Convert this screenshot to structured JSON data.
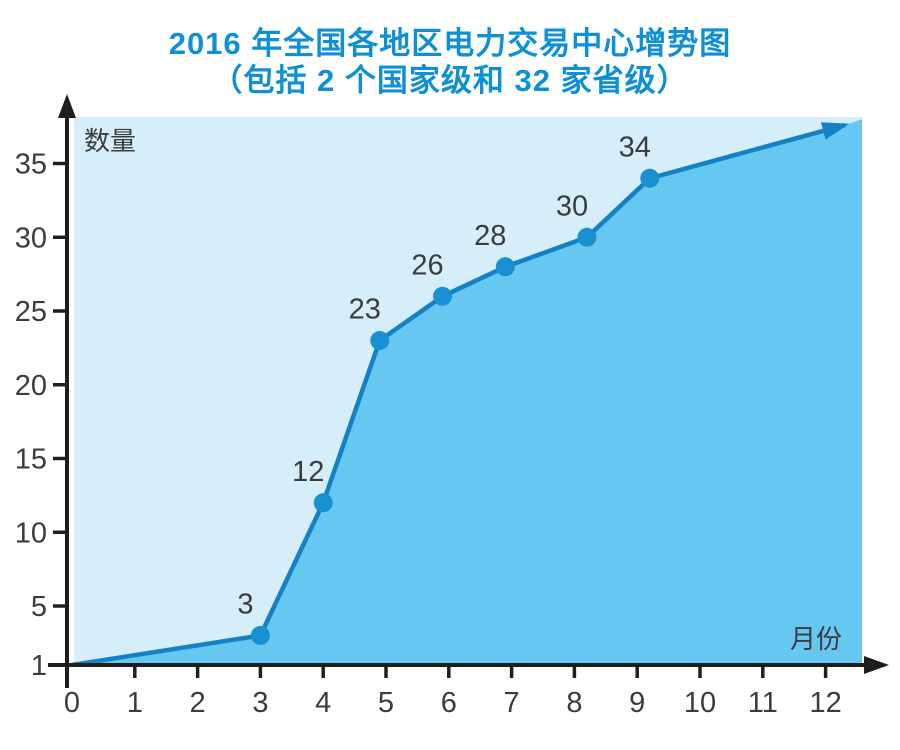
{
  "header": {
    "title": "2016 年全国各地区电力交易中心增势图",
    "subtitle": "（包括 2 个国家级和 32 家省级）"
  },
  "chart_data": {
    "type": "area",
    "title": "2016 年全国各地区电力交易中心增势图",
    "subtitle": "（包括 2 个国家级和 32 家省级）",
    "xlabel": "月份",
    "ylabel": "数量",
    "x_ticks": [
      0,
      1,
      2,
      3,
      4,
      5,
      6,
      7,
      8,
      9,
      10,
      11,
      12
    ],
    "y_ticks": [
      35,
      30,
      25,
      20,
      15,
      10,
      5,
      1
    ],
    "xlim": [
      0,
      12.6
    ],
    "ylim": [
      1,
      38
    ],
    "grid": false,
    "legend": "none",
    "line_start": {
      "x": 0,
      "y": 1
    },
    "points": [
      {
        "x": 3,
        "y": 3,
        "label": "3"
      },
      {
        "x": 4,
        "y": 12,
        "label": "12"
      },
      {
        "x": 4.9,
        "y": 23,
        "label": "23"
      },
      {
        "x": 5.9,
        "y": 26,
        "label": "26"
      },
      {
        "x": 6.9,
        "y": 28,
        "label": "28"
      },
      {
        "x": 8.2,
        "y": 30,
        "label": "30"
      },
      {
        "x": 9.2,
        "y": 34,
        "label": "34"
      }
    ],
    "arrow_end": {
      "x": 12.3,
      "y": 37.6
    },
    "colors": {
      "title": "#0e8fd6",
      "plot_background": "#d6eefa",
      "area_fill": "#66c7f0",
      "line": "#1381c6",
      "marker": "#1990d2",
      "axis": "#1e1e1c",
      "tick_text": "#3c3c3c",
      "label_text": "#3c3c3c"
    }
  }
}
